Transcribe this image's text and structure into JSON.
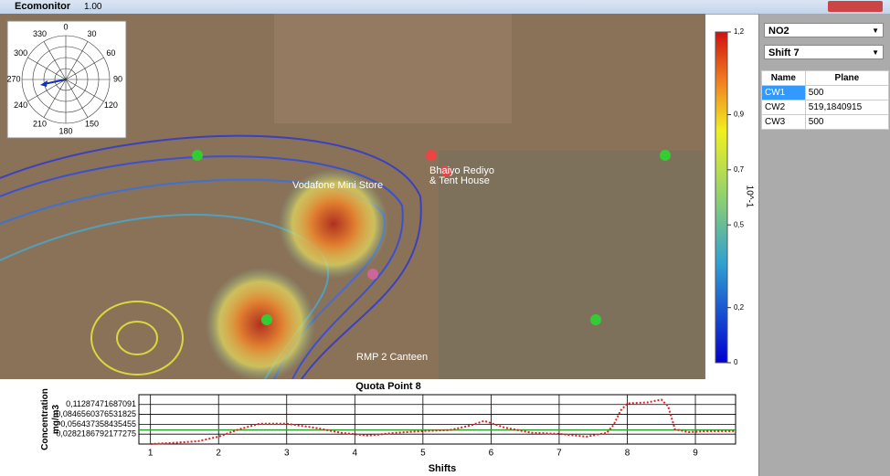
{
  "window": {
    "title": "Ecomonitor",
    "version": "1.00"
  },
  "map": {
    "labels": [
      "Vodafone Mini Store",
      "Bhaiyo Rediyo",
      "& Tent House",
      "RMP 2 Canteen"
    ]
  },
  "polar": {
    "angles": [
      0,
      30,
      60,
      90,
      120,
      150,
      180,
      210,
      240,
      270,
      300,
      330
    ]
  },
  "colorbar": {
    "label": "10^-1",
    "lim": [
      0,
      1.2
    ],
    "ticks": [
      {
        "value": 1.2,
        "label": "1,2"
      },
      {
        "value": 0.9,
        "label": "0,9"
      },
      {
        "value": 0.7,
        "label": "0,7"
      },
      {
        "value": 0.5,
        "label": "0,5"
      },
      {
        "value": 0.2,
        "label": "0,2"
      },
      0
    ]
  },
  "panel": {
    "dropdowns": [
      "NO2",
      "Shift 7"
    ],
    "table": {
      "headers": [
        "Name",
        "Plane"
      ],
      "rows": [
        [
          "CW1",
          "500"
        ],
        [
          "CW2",
          "519,1840915"
        ],
        [
          "CW3",
          "500"
        ]
      ]
    }
  },
  "chart_data": {
    "type": "line",
    "title": "Quota Point 8",
    "ylabel": "Concentration\nmg/m3",
    "xlabel": "Shifts",
    "xlim": [
      0.83,
      9.59
    ],
    "xticks": [
      1,
      2,
      3,
      4,
      5,
      6,
      7,
      8,
      9
    ],
    "ylim": [
      0,
      0.141
    ],
    "yticks": [
      {
        "value": 0.0282186792177275,
        "label": "0,0282186792177275"
      },
      {
        "value": 0.056437358435455,
        "label": "0,056437358435455"
      },
      {
        "value": 0.0846560376531825,
        "label": "0,0846560376531825"
      },
      {
        "value": 0.11287471687091,
        "label": "0,11287471687091"
      }
    ],
    "grid": true,
    "reference_line": {
      "value": 0.04,
      "color": "#2ca02c"
    },
    "series": [
      {
        "color": "#e02020",
        "x": [
          1,
          1.3,
          1.7,
          2.0,
          2.3,
          2.6,
          3.0,
          3.4,
          3.8,
          4.2,
          4.6,
          5.0,
          5.4,
          5.7,
          5.9,
          6.2,
          6.6,
          7.0,
          7.4,
          7.7,
          7.8,
          7.9,
          8.0,
          8.3,
          8.5,
          8.6,
          8.7,
          8.9,
          9.2,
          9.59
        ],
        "values": [
          0,
          0.003,
          0.008,
          0.021,
          0.042,
          0.058,
          0.058,
          0.047,
          0.032,
          0.024,
          0.032,
          0.037,
          0.04,
          0.053,
          0.066,
          0.047,
          0.032,
          0.029,
          0.021,
          0.032,
          0.055,
          0.095,
          0.116,
          0.119,
          0.127,
          0.108,
          0.042,
          0.034,
          0.037,
          0.037
        ]
      }
    ]
  }
}
